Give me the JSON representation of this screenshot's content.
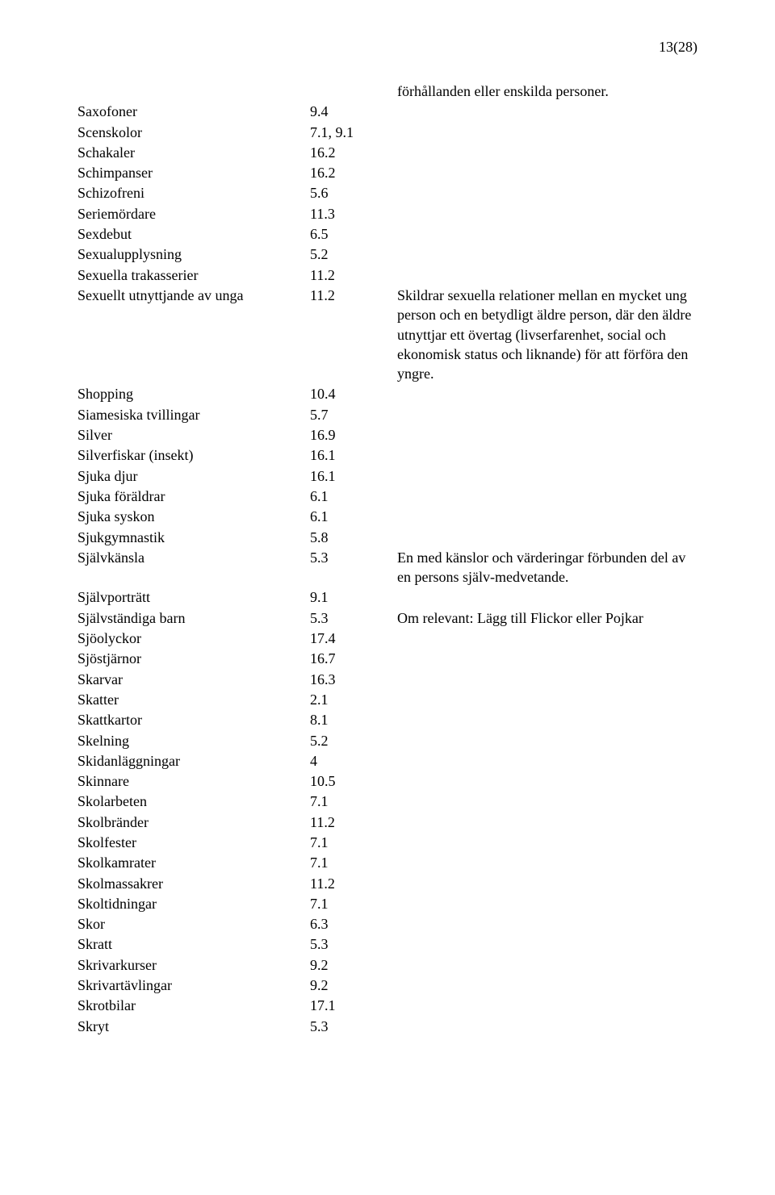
{
  "page_number": "13(28)",
  "intro_note": "förhållanden eller enskilda personer.",
  "rows": [
    {
      "term": "Saxofoner",
      "code": "9.4",
      "note": ""
    },
    {
      "term": "Scenskolor",
      "code": "7.1, 9.1",
      "note": ""
    },
    {
      "term": "Schakaler",
      "code": "16.2",
      "note": ""
    },
    {
      "term": "Schimpanser",
      "code": "16.2",
      "note": ""
    },
    {
      "term": "Schizofreni",
      "code": "5.6",
      "note": ""
    },
    {
      "term": "Seriemördare",
      "code": "11.3",
      "note": ""
    },
    {
      "term": "Sexdebut",
      "code": "6.5",
      "note": ""
    },
    {
      "term": "Sexualupplysning",
      "code": "5.2",
      "note": ""
    },
    {
      "term": "Sexuella trakasserier",
      "code": "11.2",
      "note": ""
    },
    {
      "term": "Sexuellt utnyttjande av unga",
      "code": "11.2",
      "note": "Skildrar sexuella relationer mellan en mycket ung person och en betydligt äldre person, där den äldre utnyttjar ett övertag (livserfarenhet, social och ekonomisk status och liknande) för att förföra den yngre."
    },
    {
      "term": "Shopping",
      "code": "10.4",
      "note": ""
    },
    {
      "term": "Siamesiska tvillingar",
      "code": "5.7",
      "note": ""
    },
    {
      "term": "Silver",
      "code": "16.9",
      "note": ""
    },
    {
      "term": "Silverfiskar (insekt)",
      "code": "16.1",
      "note": ""
    },
    {
      "term": "Sjuka djur",
      "code": "16.1",
      "note": ""
    },
    {
      "term": "Sjuka föräldrar",
      "code": "6.1",
      "note": ""
    },
    {
      "term": "Sjuka syskon",
      "code": "6.1",
      "note": ""
    },
    {
      "term": "Sjukgymnastik",
      "code": "5.8",
      "note": ""
    },
    {
      "term": "Självkänsla",
      "code": "5.3",
      "note": "En med känslor och värderingar förbunden del av en persons själv-medvetande."
    },
    {
      "term": "Självporträtt",
      "code": "9.1",
      "note": ""
    },
    {
      "term": "Självständiga barn",
      "code": "5.3",
      "note": "Om relevant: Lägg till Flickor eller Pojkar"
    },
    {
      "term": "Sjöolyckor",
      "code": "17.4",
      "note": ""
    },
    {
      "term": "Sjöstjärnor",
      "code": "16.7",
      "note": ""
    },
    {
      "term": "Skarvar",
      "code": "16.3",
      "note": ""
    },
    {
      "term": "Skatter",
      "code": "2.1",
      "note": ""
    },
    {
      "term": "Skattkartor",
      "code": "8.1",
      "note": ""
    },
    {
      "term": "Skelning",
      "code": "5.2",
      "note": ""
    },
    {
      "term": "Skidanläggningar",
      "code": "4",
      "note": ""
    },
    {
      "term": "Skinnare",
      "code": "10.5",
      "note": ""
    },
    {
      "term": "Skolarbeten",
      "code": "7.1",
      "note": ""
    },
    {
      "term": "Skolbränder",
      "code": "11.2",
      "note": ""
    },
    {
      "term": "Skolfester",
      "code": "7.1",
      "note": ""
    },
    {
      "term": "Skolkamrater",
      "code": "7.1",
      "note": ""
    },
    {
      "term": "Skolmassakrer",
      "code": "11.2",
      "note": ""
    },
    {
      "term": "Skoltidningar",
      "code": "7.1",
      "note": ""
    },
    {
      "term": "Skor",
      "code": "6.3",
      "note": ""
    },
    {
      "term": "Skratt",
      "code": "5.3",
      "note": ""
    },
    {
      "term": "Skrivarkurser",
      "code": "9.2",
      "note": ""
    },
    {
      "term": "Skrivartävlingar",
      "code": "9.2",
      "note": ""
    },
    {
      "term": "Skrotbilar",
      "code": "17.1",
      "note": ""
    },
    {
      "term": "Skryt",
      "code": "5.3",
      "note": ""
    }
  ]
}
